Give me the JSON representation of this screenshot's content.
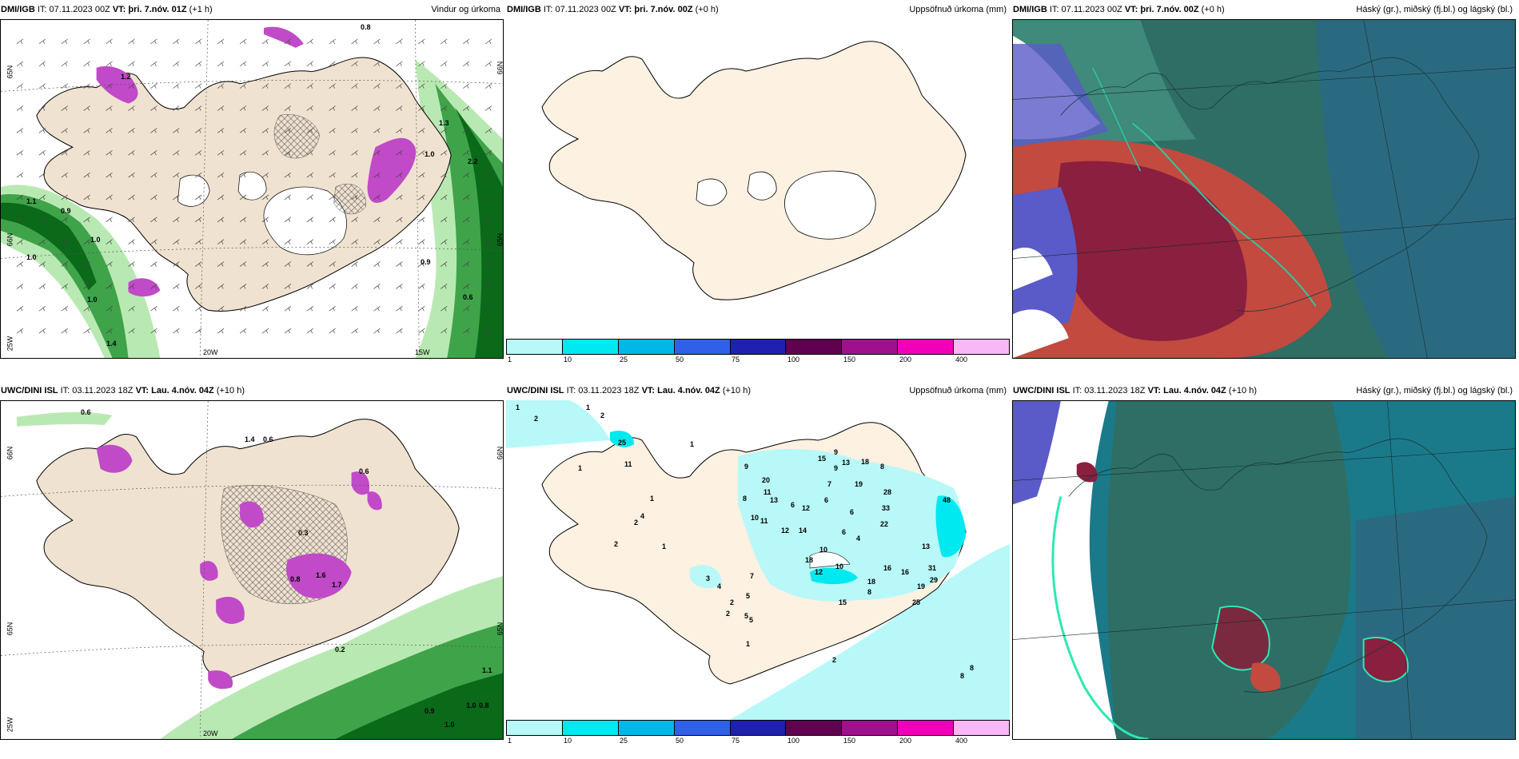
{
  "panels": [
    {
      "id": "top-left",
      "model": "DMI/IGB",
      "it_label": "IT:",
      "it": "07.11.2023 00Z",
      "vt_label": "VT:",
      "vt": "þri. 7.nóv. 01Z",
      "lead": "(+1 h)",
      "product": "Vindur og úrkoma",
      "axis_labels": [
        "65N",
        "66N",
        "65N",
        "25W",
        "20W",
        "15W",
        "66N"
      ],
      "values": [
        "1.1",
        "0.9",
        "1.0",
        "1.0",
        "1.4",
        "1.0",
        "1.2",
        "0.9",
        "0.6",
        "1.0",
        "2.2",
        "0.8",
        "1.3"
      ]
    },
    {
      "id": "top-middle",
      "model": "DMI/IGB",
      "it_label": "IT:",
      "it": "07.11.2023 00Z",
      "vt_label": "VT:",
      "vt": "þri. 7.nóv. 00Z",
      "lead": "(+0 h)",
      "product": "Uppsöfnuð úrkoma (mm)"
    },
    {
      "id": "top-right",
      "model": "DMI/IGB",
      "it_label": "IT:",
      "it": "07.11.2023 00Z",
      "vt_label": "VT:",
      "vt": "þri. 7.nóv. 00Z",
      "lead": "(+0 h)",
      "product": "Háský (gr.), miðský (fj.bl.) og lágský (bl.)"
    },
    {
      "id": "bottom-left",
      "model": "UWC/DINI ISL",
      "it_label": "IT:",
      "it": "03.11.2023 18Z",
      "vt_label": "VT:",
      "vt": "Lau. 4.nóv. 04Z",
      "lead": "(+10 h)",
      "product": "",
      "axis_labels": [
        "66N",
        "65N",
        "66N",
        "25W",
        "20W",
        "65N"
      ],
      "values": [
        "0.6",
        "1.4",
        "0.6",
        "0.6",
        "1.6",
        "1.7",
        "0.8",
        "0.3",
        "0.2",
        "1.1",
        "1.0",
        "0.9",
        "1.0",
        "0.8"
      ]
    },
    {
      "id": "bottom-middle",
      "model": "UWC/DINI ISL",
      "it_label": "IT:",
      "it": "03.11.2023 18Z",
      "vt_label": "VT:",
      "vt": "Lau. 4.nóv. 04Z",
      "lead": "(+10 h)",
      "product": "Uppsöfnuð úrkoma (mm)",
      "values": [
        "1",
        "2",
        "1",
        "2",
        "1",
        "25",
        "11",
        "1",
        "2",
        "4",
        "2",
        "1",
        "9",
        "20",
        "11",
        "8",
        "13",
        "10",
        "11",
        "6",
        "12",
        "14",
        "12",
        "15",
        "9",
        "7",
        "6",
        "9",
        "13",
        "19",
        "18",
        "28",
        "33",
        "22",
        "48",
        "8",
        "6",
        "6",
        "4",
        "10",
        "18",
        "13",
        "31",
        "29",
        "25",
        "19",
        "16",
        "16",
        "18",
        "10",
        "12",
        "15",
        "8",
        "7",
        "5",
        "4",
        "3",
        "2",
        "2",
        "5",
        "1",
        "1",
        "2",
        "8",
        "8",
        "5"
      ]
    },
    {
      "id": "bottom-right",
      "model": "UWC/DINI ISL",
      "it_label": "IT:",
      "it": "03.11.2023 18Z",
      "vt_label": "VT:",
      "vt": "Lau. 4.nóv. 04Z",
      "lead": "(+10 h)",
      "product": "Háský (gr.), miðský (fj.bl.) og lágský (bl.)"
    }
  ],
  "colorbar": {
    "ticks": [
      "1",
      "10",
      "25",
      "50",
      "75",
      "100",
      "150",
      "200",
      "400"
    ],
    "colors": [
      "#b8f8f8",
      "#00e8f0",
      "#00b8e8",
      "#3060e8",
      "#2020b0",
      "#600050",
      "#a0108c",
      "#f000b8",
      "#f8b8f8"
    ]
  },
  "colors": {
    "land": "#fdf1e2",
    "snow": "#ffffff",
    "wind_green_dark": "#0a6a1a",
    "wind_green_mid": "#3fa34a",
    "wind_green_light": "#b9e9b2",
    "precip_magenta": "#c04ac8",
    "cloud_high": "#2e6e64",
    "cloud_mid_red": "#8a1f3f",
    "cloud_low_blue": "#5a5ac8",
    "cloud_teal": "#1a7a8a"
  }
}
